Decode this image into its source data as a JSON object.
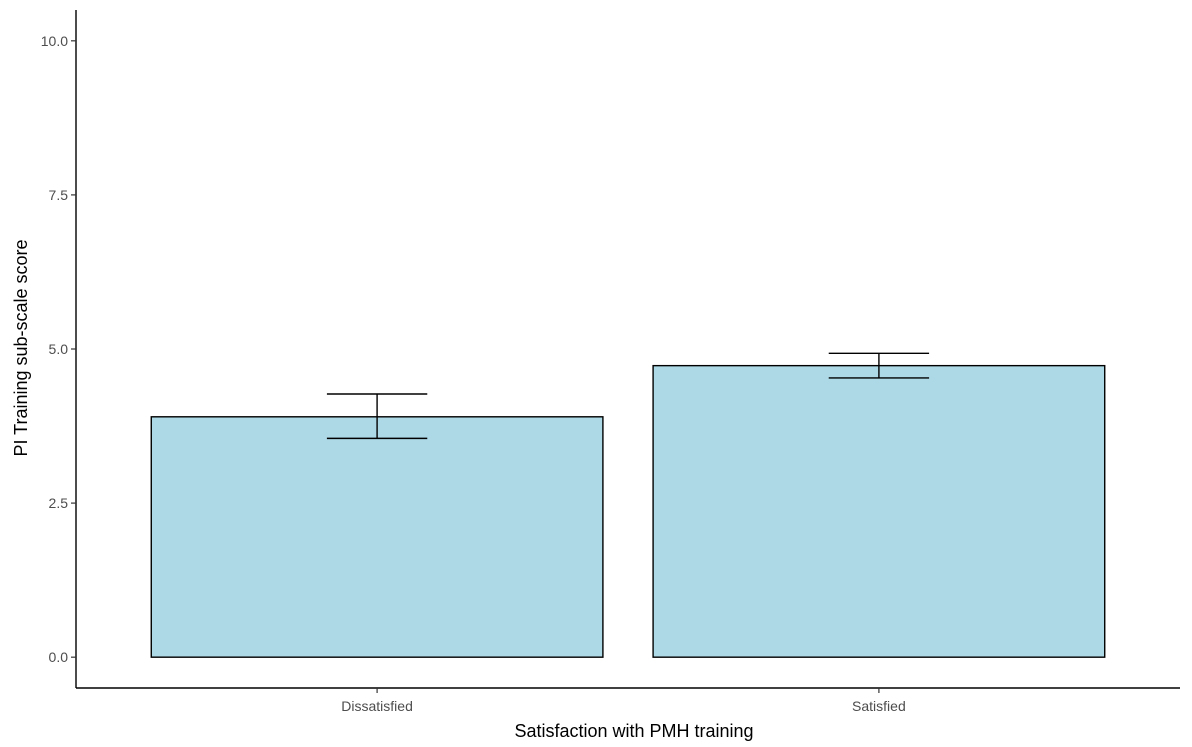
{
  "chart_data": {
    "type": "bar",
    "title": "",
    "xlabel": "Satisfaction with PMH training",
    "ylabel": "PI Training sub-scale score",
    "categories": [
      "Dissatisfied",
      "Satisfied"
    ],
    "values": [
      3.9,
      4.73
    ],
    "error_low": [
      3.55,
      4.53
    ],
    "error_high": [
      4.27,
      4.93
    ],
    "ylim": [
      -0.5,
      10.5
    ],
    "yticks": [
      0.0,
      2.5,
      5.0,
      7.5,
      10.0
    ],
    "ytick_labels": [
      "0.0",
      "2.5",
      "5.0",
      "7.5",
      "10.0"
    ],
    "grid": false,
    "bar_color": "#add8e6",
    "bar_outline_color": "#000000"
  }
}
